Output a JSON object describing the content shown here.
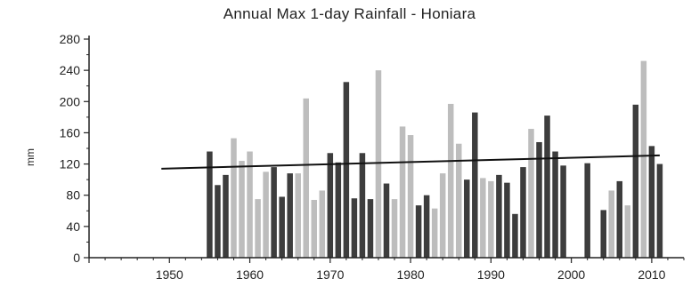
{
  "chart_data": {
    "type": "bar",
    "title": "Annual Max 1-day Rainfall - Honiara",
    "xlabel": "",
    "ylabel": "mm",
    "xlim": [
      1940,
      2014
    ],
    "ylim": [
      0,
      280
    ],
    "x_ticks": [
      "1950",
      "1960",
      "1970",
      "1980",
      "1990",
      "2000",
      "2010"
    ],
    "y_ticks": [
      "0",
      "40",
      "80",
      "120",
      "160",
      "200",
      "240",
      "280"
    ],
    "grid": false,
    "legend": "none",
    "colors": {
      "dark": "#3d3d3d",
      "light": "#bdbdbd",
      "trend": "#111111",
      "axis": "#222222"
    },
    "series": [
      {
        "years": [
          1955,
          1956,
          1957,
          1958,
          1959,
          1960,
          1961,
          1962,
          1963,
          1964,
          1965,
          1966,
          1967,
          1968,
          1969,
          1970,
          1971,
          1972,
          1973,
          1974,
          1975,
          1976,
          1977,
          1978,
          1979,
          1980,
          1981,
          1982,
          1983,
          1984,
          1985,
          1986,
          1987,
          1988,
          1989,
          1990,
          1991,
          1992,
          1993,
          1994,
          1995,
          1996,
          1997,
          1998,
          1999,
          2002,
          2004,
          2005,
          2006,
          2007,
          2008,
          2009,
          2010,
          2011
        ],
        "values": [
          136,
          93,
          106,
          153,
          124,
          136,
          75,
          110,
          116,
          78,
          108,
          108,
          204,
          74,
          86,
          134,
          122,
          225,
          76,
          134,
          75,
          240,
          95,
          75,
          168,
          157,
          67,
          80,
          63,
          108,
          197,
          146,
          100,
          186,
          102,
          98,
          106,
          96,
          56,
          116,
          165,
          148,
          182,
          136,
          118,
          121,
          61,
          86,
          98,
          67,
          196,
          252,
          143,
          120
        ],
        "shades": [
          "dark",
          "dark",
          "dark",
          "light",
          "light",
          "light",
          "light",
          "light",
          "dark",
          "dark",
          "dark",
          "light",
          "light",
          "light",
          "light",
          "dark",
          "dark",
          "dark",
          "dark",
          "dark",
          "dark",
          "light",
          "dark",
          "light",
          "light",
          "light",
          "dark",
          "dark",
          "light",
          "light",
          "light",
          "light",
          "dark",
          "dark",
          "light",
          "light",
          "dark",
          "dark",
          "dark",
          "dark",
          "light",
          "dark",
          "dark",
          "dark",
          "dark",
          "dark",
          "dark",
          "light",
          "dark",
          "light",
          "dark",
          "light",
          "dark",
          "dark"
        ]
      }
    ],
    "trend": {
      "x": [
        1949,
        2011
      ],
      "y": [
        114,
        131
      ]
    }
  }
}
